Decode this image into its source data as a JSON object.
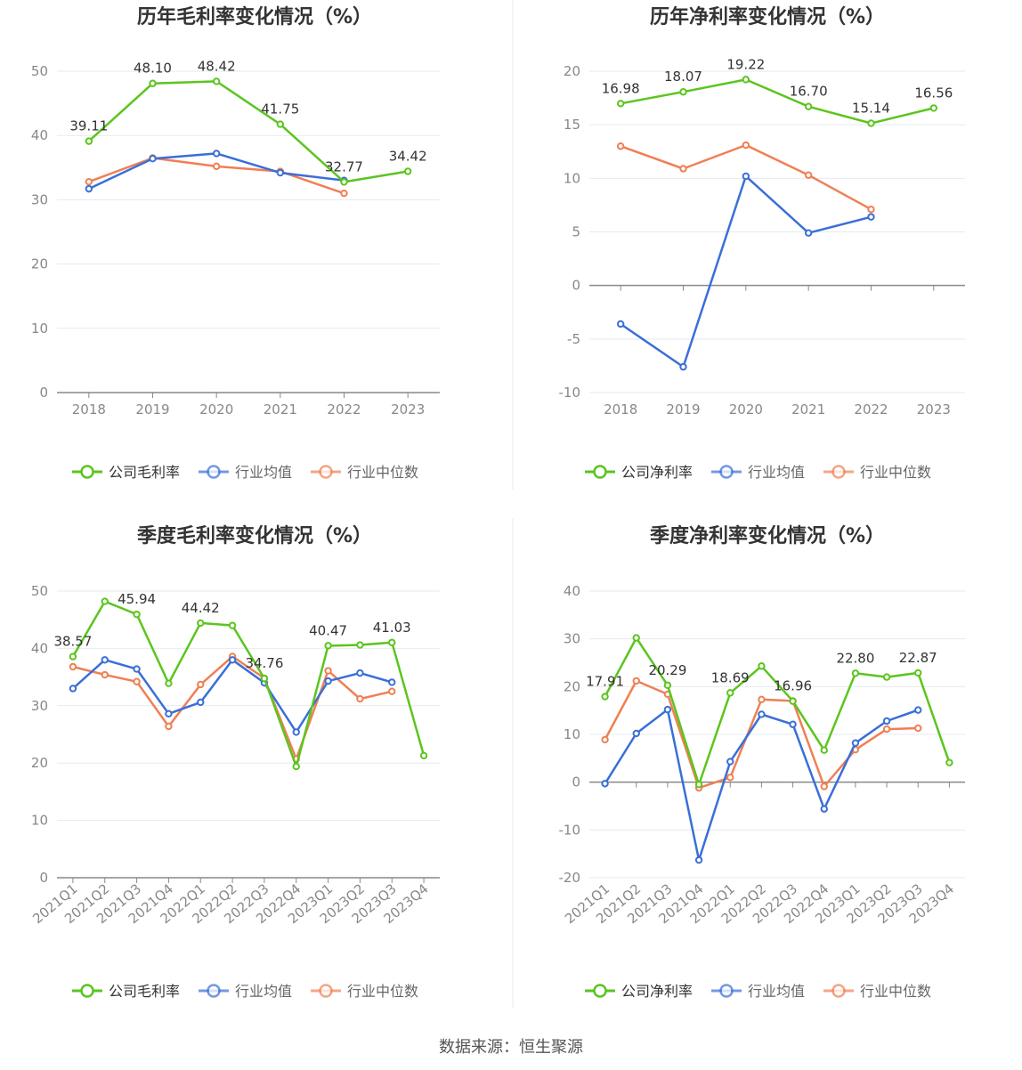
{
  "source_text": "数据来源：恒生聚源",
  "colors": {
    "company": "#5bc51e",
    "avg": "#3a6fd8",
    "median": "#f07f54",
    "grid": "#e6e9f0",
    "axis": "#888888",
    "title": "#333333"
  },
  "chart_data": [
    {
      "type": "line",
      "title": "历年毛利率变化情况（%）",
      "categories": [
        "2018",
        "2019",
        "2020",
        "2021",
        "2022",
        "2023"
      ],
      "ylim": [
        0,
        50
      ],
      "yticks": [
        0,
        10,
        20,
        30,
        40,
        50
      ],
      "grid": true,
      "legend_position": "bottom",
      "series": [
        {
          "name": "公司毛利率",
          "values": [
            39.11,
            48.1,
            48.42,
            41.75,
            32.77,
            34.42
          ],
          "labels": [
            "39.11",
            "48.10",
            "48.42",
            "41.75",
            "32.77",
            "34.42"
          ]
        },
        {
          "name": "行业均值",
          "values": [
            31.7,
            36.4,
            37.2,
            34.2,
            33.0,
            null
          ]
        },
        {
          "name": "行业中位数",
          "values": [
            32.8,
            36.5,
            35.2,
            34.4,
            31.0,
            null
          ]
        }
      ]
    },
    {
      "type": "line",
      "title": "历年净利率变化情况（%）",
      "categories": [
        "2018",
        "2019",
        "2020",
        "2021",
        "2022",
        "2023"
      ],
      "ylim": [
        -10,
        20
      ],
      "yticks": [
        -10,
        -5,
        0,
        5,
        10,
        15,
        20
      ],
      "grid": true,
      "legend_position": "bottom",
      "series": [
        {
          "name": "公司净利率",
          "values": [
            16.98,
            18.07,
            19.22,
            16.7,
            15.14,
            16.56
          ],
          "labels": [
            "16.98",
            "18.07",
            "19.22",
            "16.70",
            "15.14",
            "16.56"
          ]
        },
        {
          "name": "行业均值",
          "values": [
            -3.6,
            -7.6,
            10.2,
            4.9,
            6.4,
            null
          ]
        },
        {
          "name": "行业中位数",
          "values": [
            13.0,
            10.9,
            13.1,
            10.3,
            7.1,
            null
          ]
        }
      ]
    },
    {
      "type": "line",
      "title": "季度毛利率变化情况（%）",
      "categories": [
        "2021Q1",
        "2021Q2",
        "2021Q3",
        "2021Q4",
        "2022Q1",
        "2022Q2",
        "2022Q3",
        "2022Q4",
        "2023Q1",
        "2023Q2",
        "2023Q3",
        "2023Q4"
      ],
      "ylim": [
        0,
        50
      ],
      "yticks": [
        0,
        10,
        20,
        30,
        40,
        50
      ],
      "grid": true,
      "legend_position": "bottom",
      "series": [
        {
          "name": "公司毛利率",
          "values": [
            38.57,
            48.2,
            45.94,
            33.9,
            44.42,
            44.0,
            34.76,
            19.4,
            40.47,
            40.6,
            41.03,
            21.3
          ],
          "labels": [
            "38.57",
            "",
            "45.94",
            "",
            "44.42",
            "",
            "34.76",
            "",
            "40.47",
            "",
            "41.03",
            ""
          ]
        },
        {
          "name": "行业均值",
          "values": [
            33.0,
            38.0,
            36.4,
            28.6,
            30.6,
            38.0,
            34.0,
            25.4,
            34.3,
            35.7,
            34.1,
            null
          ]
        },
        {
          "name": "行业中位数",
          "values": [
            36.8,
            35.4,
            34.2,
            26.4,
            33.7,
            38.6,
            34.8,
            20.7,
            36.1,
            31.2,
            32.5,
            null
          ]
        }
      ]
    },
    {
      "type": "line",
      "title": "季度净利率变化情况（%）",
      "categories": [
        "2021Q1",
        "2021Q2",
        "2021Q3",
        "2021Q4",
        "2022Q1",
        "2022Q2",
        "2022Q3",
        "2022Q4",
        "2023Q1",
        "2023Q2",
        "2023Q3",
        "2023Q4"
      ],
      "ylim": [
        -20,
        40
      ],
      "yticks": [
        -20,
        -10,
        0,
        10,
        20,
        30,
        40
      ],
      "grid": true,
      "legend_position": "bottom",
      "series": [
        {
          "name": "公司净利率",
          "values": [
            17.91,
            30.2,
            20.29,
            -0.5,
            18.69,
            24.3,
            16.96,
            6.7,
            22.8,
            22.0,
            22.87,
            4.1
          ],
          "labels": [
            "17.91",
            "",
            "20.29",
            "",
            "18.69",
            "",
            "16.96",
            "",
            "22.80",
            "",
            "22.87",
            ""
          ]
        },
        {
          "name": "行业均值",
          "values": [
            -0.3,
            10.2,
            15.2,
            -16.3,
            4.3,
            14.2,
            12.1,
            -5.6,
            8.2,
            12.8,
            15.1,
            null
          ]
        },
        {
          "name": "行业中位数",
          "values": [
            8.9,
            21.2,
            18.4,
            -1.2,
            1.0,
            17.3,
            17.0,
            -0.9,
            6.8,
            11.1,
            11.3,
            null
          ]
        }
      ]
    }
  ]
}
